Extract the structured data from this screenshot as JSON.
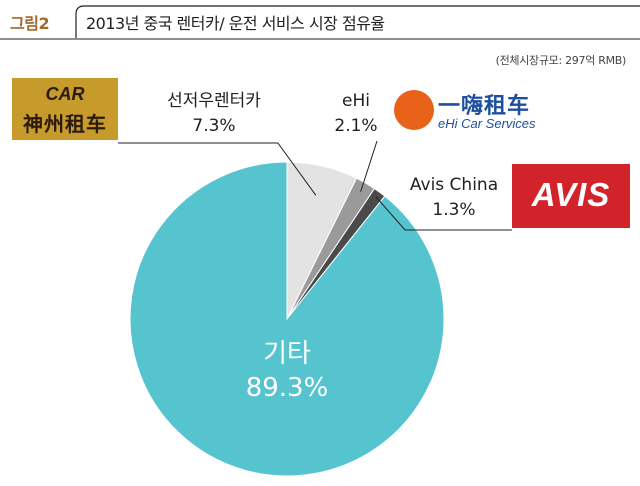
{
  "header": {
    "figure_tag": "그림2",
    "title": "2013년 중국 렌터카/ 운전 서비스 시장 점유율",
    "source": "(전체시장규모: 297억 RMB)"
  },
  "logos": {
    "car_top": "CAR",
    "car_bottom": "神州租车",
    "ehi_cn": "一嗨租车",
    "ehi_en": "eHi Car Services",
    "avis": "AVIS"
  },
  "colors": {
    "main_slice": "#55c4cf",
    "car_slice": "#e3e3e3",
    "ehi_slice": "#9a9a9a",
    "avis_slice": "#4a4a4a",
    "car_logo_bg": "#c79a2c",
    "ehi_logo": "#1e4f9e",
    "ehi_circle": "#e8621a",
    "avis_logo_bg": "#d2232a",
    "title_accent": "#a5682a"
  },
  "chart_data": {
    "type": "pie",
    "title": "2013년 중국 렌터카/ 운전 서비스 시장 점유율",
    "slices": [
      {
        "label": "선저우렌터카",
        "value": 7.3,
        "display": "7.3%"
      },
      {
        "label": "eHi",
        "value": 2.1,
        "display": "2.1%"
      },
      {
        "label": "Avis China",
        "value": 1.3,
        "display": "1.3%"
      },
      {
        "label": "기타",
        "value": 89.3,
        "display": "89.3%"
      }
    ]
  }
}
